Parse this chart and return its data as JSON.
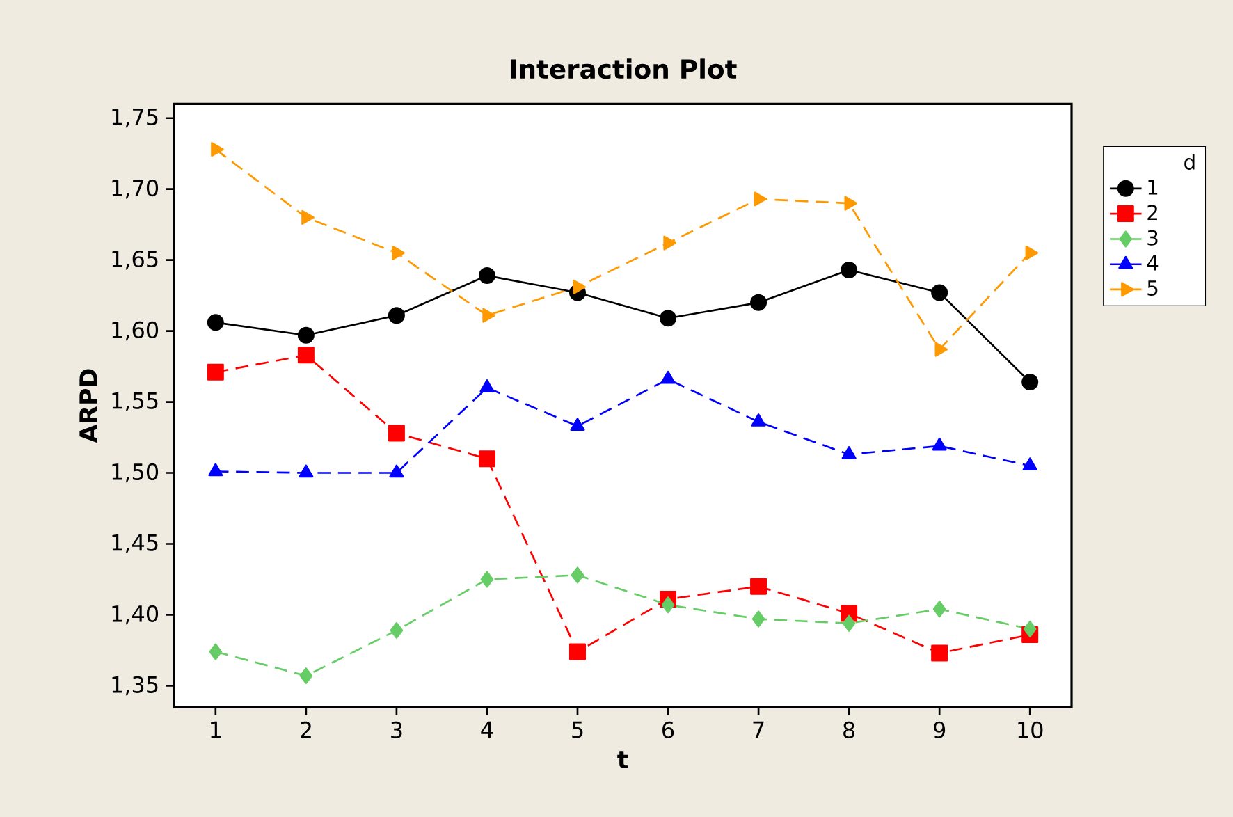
{
  "chart_data": {
    "type": "line",
    "title": "Interaction Plot",
    "xlabel": "t",
    "ylabel": "ARPD",
    "legend_title": "d",
    "legend": "right",
    "x": [
      1,
      2,
      3,
      4,
      5,
      6,
      7,
      8,
      9,
      10
    ],
    "xlim": [
      0.54,
      10.46
    ],
    "xticks": [
      1,
      2,
      3,
      4,
      5,
      6,
      7,
      8,
      9,
      10
    ],
    "ylim": [
      1.335,
      1.76
    ],
    "yticks": [
      {
        "value": 1.35,
        "label": "1,35"
      },
      {
        "value": 1.4,
        "label": "1,40"
      },
      {
        "value": 1.45,
        "label": "1,45"
      },
      {
        "value": 1.5,
        "label": "1,50"
      },
      {
        "value": 1.55,
        "label": "1,55"
      },
      {
        "value": 1.6,
        "label": "1,60"
      },
      {
        "value": 1.65,
        "label": "1,65"
      },
      {
        "value": 1.7,
        "label": "1,70"
      },
      {
        "value": 1.75,
        "label": "1,75"
      }
    ],
    "series": [
      {
        "name": "1",
        "color": "#000000",
        "marker": "circle",
        "line_style": "solid",
        "values": [
          1.606,
          1.597,
          1.611,
          1.639,
          1.627,
          1.609,
          1.62,
          1.643,
          1.627,
          1.564
        ]
      },
      {
        "name": "2",
        "color": "#ff0000",
        "marker": "square",
        "line_style": "dashed",
        "values": [
          1.571,
          1.583,
          1.528,
          1.51,
          1.374,
          1.411,
          1.42,
          1.401,
          1.373,
          1.386
        ]
      },
      {
        "name": "3",
        "color": "#66cc66",
        "marker": "diamond",
        "line_style": "dashed",
        "values": [
          1.374,
          1.357,
          1.389,
          1.425,
          1.428,
          1.407,
          1.397,
          1.394,
          1.404,
          1.39
        ]
      },
      {
        "name": "4",
        "color": "#0000ff",
        "marker": "triangle",
        "line_style": "dashed",
        "values": [
          1.501,
          1.5,
          1.5,
          1.56,
          1.533,
          1.566,
          1.536,
          1.513,
          1.519,
          1.505
        ]
      },
      {
        "name": "5",
        "color": "#ff9900",
        "marker": "triangle-right",
        "line_style": "dashed",
        "values": [
          1.728,
          1.68,
          1.655,
          1.611,
          1.631,
          1.662,
          1.693,
          1.69,
          1.587,
          1.655
        ]
      }
    ]
  }
}
